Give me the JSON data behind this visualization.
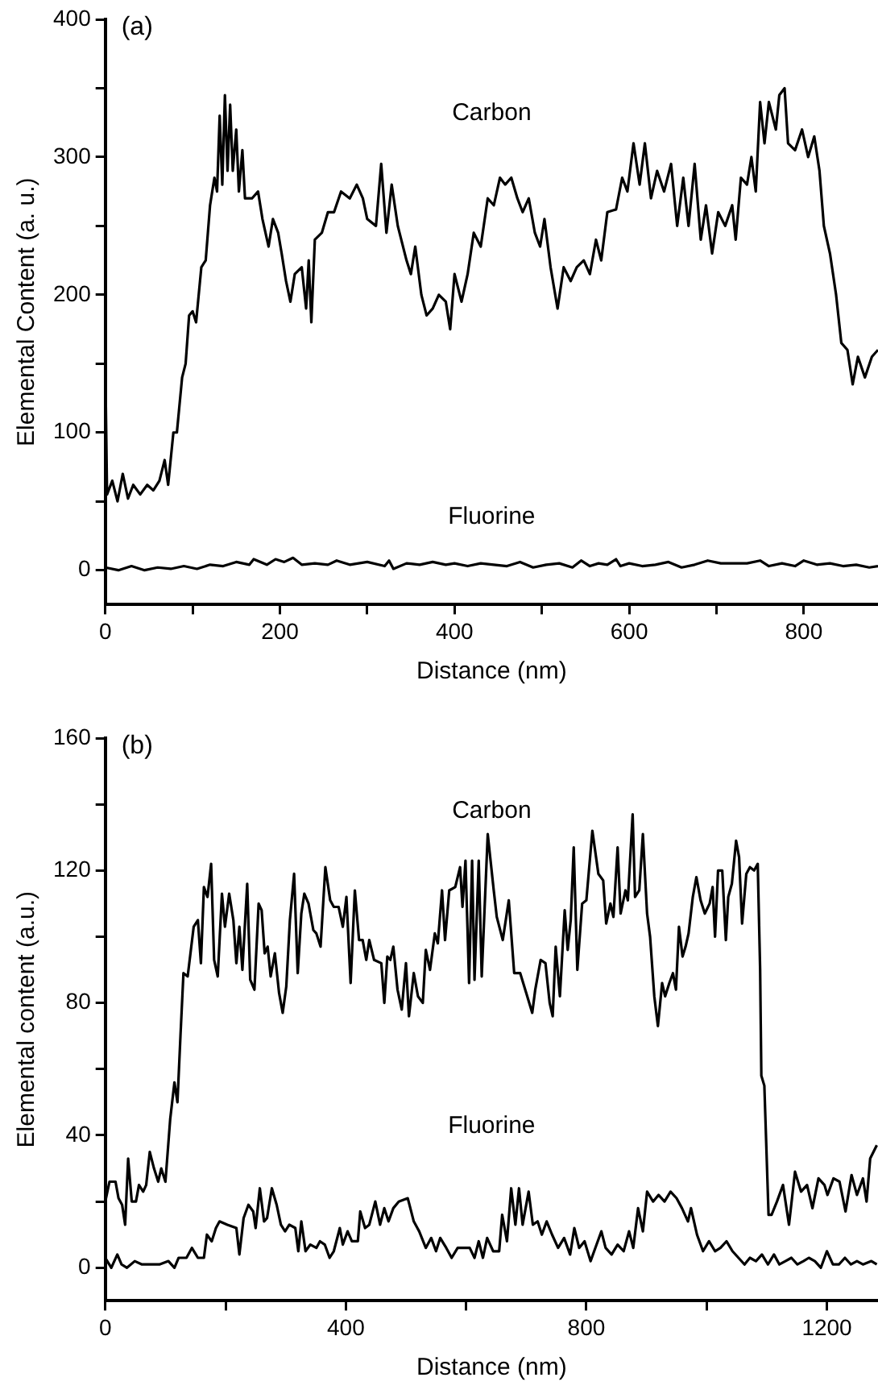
{
  "chart_data": [
    {
      "type": "line",
      "title": "(a)",
      "xlabel": "Distance (nm)",
      "ylabel": "Elemental Content (a. u.)",
      "xlim": [
        0,
        885
      ],
      "ylim": [
        -25,
        400
      ],
      "xticks": [
        0,
        {
          "value": 100,
          "label": null
        },
        200,
        {
          "value": 300,
          "label": null
        },
        400,
        {
          "value": 500,
          "label": null
        },
        600,
        {
          "value": 700,
          "label": null
        },
        800
      ],
      "yticks": [
        0,
        {
          "value": 50,
          "label": null
        },
        100,
        {
          "value": 150,
          "label": null
        },
        200,
        {
          "value": 250,
          "label": null
        },
        300,
        {
          "value": 350,
          "label": null
        },
        400
      ],
      "series": [
        {
          "name": "Carbon",
          "color": "#000000",
          "x": [
            0,
            2,
            8,
            14,
            20,
            26,
            32,
            40,
            48,
            55,
            62,
            68,
            72,
            78,
            82,
            88,
            92,
            96,
            100,
            104,
            110,
            115,
            120,
            125,
            128,
            131,
            134,
            137,
            140,
            143,
            146,
            150,
            153,
            157,
            160,
            168,
            175,
            180,
            187,
            192,
            198,
            202,
            207,
            212,
            217,
            225,
            230,
            233,
            236,
            240,
            248,
            255,
            262,
            270,
            280,
            288,
            295,
            300,
            310,
            316,
            322,
            328,
            335,
            345,
            350,
            355,
            362,
            368,
            375,
            382,
            390,
            395,
            400,
            408,
            415,
            422,
            430,
            438,
            445,
            452,
            458,
            465,
            472,
            478,
            485,
            492,
            498,
            503,
            510,
            518,
            525,
            533,
            540,
            548,
            555,
            562,
            568,
            575,
            585,
            592,
            598,
            605,
            612,
            618,
            625,
            632,
            640,
            648,
            655,
            662,
            668,
            675,
            682,
            688,
            695,
            702,
            710,
            718,
            722,
            728,
            735,
            740,
            745,
            750,
            755,
            760,
            768,
            772,
            778,
            782,
            790,
            798,
            805,
            812,
            818,
            823,
            830,
            837,
            843,
            850,
            856,
            862,
            870,
            878,
            885
          ],
          "values": [
            150,
            55,
            65,
            50,
            70,
            52,
            62,
            55,
            62,
            58,
            65,
            80,
            62,
            100,
            100,
            140,
            150,
            185,
            188,
            180,
            220,
            225,
            265,
            285,
            275,
            330,
            280,
            345,
            290,
            338,
            290,
            320,
            275,
            305,
            270,
            270,
            275,
            255,
            235,
            255,
            245,
            230,
            210,
            195,
            215,
            220,
            190,
            225,
            180,
            240,
            245,
            260,
            260,
            275,
            270,
            280,
            270,
            255,
            250,
            295,
            245,
            280,
            250,
            225,
            215,
            235,
            200,
            185,
            190,
            200,
            195,
            175,
            215,
            195,
            215,
            245,
            235,
            270,
            265,
            285,
            280,
            285,
            270,
            260,
            270,
            245,
            235,
            255,
            220,
            190,
            220,
            210,
            220,
            225,
            215,
            240,
            225,
            260,
            262,
            285,
            275,
            310,
            280,
            310,
            270,
            290,
            275,
            295,
            250,
            285,
            250,
            295,
            240,
            265,
            230,
            260,
            250,
            265,
            240,
            285,
            280,
            300,
            275,
            340,
            310,
            340,
            320,
            345,
            350,
            310,
            305,
            320,
            300,
            315,
            290,
            250,
            230,
            200,
            165,
            160,
            135,
            155,
            140,
            155,
            160
          ]
        },
        {
          "name": "Fluorine",
          "color": "#000000",
          "x": [
            0,
            15,
            30,
            45,
            60,
            75,
            90,
            105,
            120,
            135,
            150,
            165,
            170,
            185,
            195,
            205,
            215,
            225,
            240,
            255,
            265,
            280,
            300,
            320,
            325,
            330,
            345,
            360,
            375,
            390,
            400,
            415,
            430,
            445,
            460,
            475,
            490,
            505,
            520,
            535,
            545,
            555,
            565,
            575,
            585,
            590,
            600,
            615,
            630,
            645,
            660,
            675,
            690,
            705,
            720,
            735,
            750,
            760,
            775,
            790,
            800,
            815,
            830,
            845,
            860,
            875,
            885
          ],
          "values": [
            2,
            0,
            3,
            0,
            2,
            1,
            3,
            1,
            4,
            3,
            6,
            4,
            8,
            4,
            8,
            6,
            9,
            4,
            5,
            4,
            7,
            4,
            6,
            3,
            7,
            1,
            5,
            4,
            6,
            4,
            5,
            3,
            5,
            4,
            3,
            6,
            2,
            4,
            5,
            2,
            7,
            3,
            5,
            4,
            8,
            3,
            5,
            3,
            4,
            6,
            2,
            4,
            7,
            5,
            5,
            5,
            7,
            3,
            5,
            3,
            7,
            4,
            5,
            3,
            4,
            2,
            3
          ]
        }
      ]
    },
    {
      "type": "line",
      "title": "(b)",
      "xlabel": "Distance (nm)",
      "ylabel": "Elemental content (a.u.)",
      "xlim": [
        0,
        1285
      ],
      "ylim": [
        -10,
        160
      ],
      "xticks": [
        0,
        {
          "value": 200,
          "label": null
        },
        400,
        {
          "value": 600,
          "label": null
        },
        800,
        {
          "value": 1000,
          "label": null
        },
        1200
      ],
      "yticks": [
        0,
        {
          "value": 20,
          "label": null
        },
        40,
        {
          "value": 60,
          "label": null
        },
        80,
        {
          "value": 100,
          "label": null
        },
        120,
        {
          "value": 140,
          "label": null
        },
        160
      ],
      "series": [
        {
          "name": "Carbon",
          "color": "#000000",
          "x": [
            0,
            7,
            17,
            22,
            28,
            33,
            38,
            44,
            51,
            56,
            63,
            68,
            74,
            81,
            88,
            93,
            100,
            108,
            115,
            120,
            125,
            130,
            137,
            147,
            154,
            159,
            164,
            170,
            176,
            181,
            187,
            194,
            199,
            206,
            213,
            218,
            223,
            228,
            236,
            241,
            248,
            255,
            260,
            265,
            270,
            275,
            282,
            289,
            295,
            301,
            307,
            314,
            320,
            326,
            331,
            338,
            346,
            351,
            358,
            366,
            374,
            380,
            388,
            395,
            401,
            408,
            415,
            422,
            428,
            434,
            439,
            447,
            459,
            464,
            469,
            474,
            479,
            486,
            493,
            500,
            505,
            513,
            520,
            528,
            533,
            540,
            548,
            553,
            560,
            565,
            572,
            582,
            590,
            594,
            599,
            605,
            610,
            614,
            621,
            626,
            636,
            646,
            651,
            661,
            671,
            680,
            690,
            700,
            710,
            715,
            724,
            732,
            739,
            744,
            749,
            756,
            764,
            769,
            774,
            779,
            785,
            793,
            800,
            810,
            820,
            828,
            833,
            840,
            845,
            852,
            857,
            865,
            869,
            877,
            881,
            888,
            894,
            901,
            906,
            913,
            919,
            926,
            931,
            938,
            944,
            949,
            954,
            960,
            965,
            970,
            977,
            983,
            990,
            997,
            1005,
            1010,
            1014,
            1019,
            1026,
            1032,
            1036,
            1042,
            1049,
            1054,
            1059,
            1066,
            1072,
            1079,
            1085,
            1089,
            1091,
            1096,
            1103,
            1108,
            1117,
            1127,
            1137,
            1147,
            1157,
            1167,
            1176,
            1186,
            1196,
            1201,
            1211,
            1221,
            1231,
            1241,
            1250,
            1260,
            1266,
            1272,
            1283
          ],
          "values": [
            20,
            26,
            26,
            21,
            19,
            13,
            33,
            20,
            20,
            25,
            23,
            25,
            35,
            30,
            26,
            30,
            26,
            45,
            56,
            50,
            70,
            89,
            88,
            103,
            105,
            92,
            115,
            112,
            122,
            93,
            88,
            113,
            103,
            113,
            105,
            92,
            103,
            90,
            116,
            87,
            84,
            110,
            108,
            95,
            97,
            88,
            95,
            83,
            77,
            85,
            105,
            119,
            89,
            107,
            113,
            110,
            102,
            101,
            97,
            121,
            111,
            109,
            109,
            103,
            112,
            86,
            114,
            99,
            99,
            93,
            99,
            93,
            92,
            80,
            94,
            93,
            97,
            84,
            78,
            92,
            76,
            89,
            82,
            80,
            96,
            90,
            101,
            98,
            114,
            99,
            114,
            115,
            121,
            109,
            123,
            86,
            123,
            87,
            123,
            88,
            131,
            114,
            106,
            99,
            111,
            89,
            89,
            83,
            77,
            84,
            93,
            92,
            80,
            76,
            97,
            82,
            108,
            96,
            105,
            127,
            90,
            110,
            111,
            132,
            119,
            117,
            104,
            110,
            106,
            127,
            107,
            114,
            111,
            137,
            112,
            114,
            131,
            107,
            100,
            82,
            73,
            86,
            82,
            86,
            89,
            84,
            103,
            94,
            97,
            101,
            112,
            118,
            111,
            107,
            110,
            115,
            100,
            120,
            120,
            99,
            112,
            116,
            129,
            124,
            104,
            119,
            121,
            120,
            122,
            90,
            58,
            55,
            16,
            16,
            20,
            25,
            13,
            29,
            23,
            25,
            18,
            27,
            25,
            22,
            27,
            26,
            17,
            28,
            22,
            27,
            20,
            33,
            37
          ]
        },
        {
          "name": "Fluorine",
          "color": "#000000",
          "x": [
            0,
            10,
            20,
            27,
            36,
            49,
            61,
            76,
            90,
            105,
            115,
            122,
            135,
            144,
            154,
            164,
            169,
            177,
            184,
            190,
            203,
            218,
            223,
            230,
            238,
            246,
            250,
            257,
            264,
            269,
            277,
            285,
            292,
            299,
            306,
            316,
            321,
            326,
            333,
            341,
            351,
            357,
            365,
            373,
            380,
            390,
            395,
            403,
            410,
            420,
            424,
            432,
            439,
            449,
            457,
            464,
            471,
            479,
            488,
            503,
            513,
            522,
            533,
            542,
            550,
            557,
            567,
            576,
            586,
            596,
            606,
            614,
            621,
            628,
            635,
            645,
            655,
            660,
            668,
            675,
            682,
            688,
            694,
            704,
            711,
            719,
            726,
            734,
            743,
            753,
            763,
            773,
            780,
            788,
            797,
            807,
            817,
            825,
            832,
            842,
            852,
            862,
            871,
            878,
            886,
            894,
            901,
            911,
            920,
            930,
            940,
            950,
            959,
            969,
            974,
            984,
            994,
            1004,
            1014,
            1023,
            1033,
            1043,
            1053,
            1063,
            1072,
            1082,
            1092,
            1102,
            1112,
            1121,
            1131,
            1141,
            1151,
            1161,
            1170,
            1180,
            1190,
            1200,
            1210,
            1220,
            1230,
            1240,
            1250,
            1260,
            1274,
            1283
          ],
          "values": [
            3,
            0,
            4,
            1,
            0,
            2,
            1,
            1,
            1,
            2,
            0,
            3,
            3,
            6,
            3,
            3,
            10,
            8,
            12,
            14,
            13,
            12,
            4,
            15,
            19,
            17,
            12,
            24,
            14,
            15,
            24,
            19,
            13,
            11,
            13,
            12,
            5,
            14,
            5,
            7,
            6,
            8,
            7,
            3,
            5,
            12,
            7,
            11,
            8,
            8,
            17,
            12,
            13,
            20,
            13,
            18,
            14,
            18,
            20,
            21,
            14,
            11,
            6,
            9,
            5,
            9,
            6,
            3,
            6,
            6,
            6,
            3,
            8,
            3,
            9,
            5,
            5,
            16,
            8,
            24,
            13,
            24,
            13,
            23,
            13,
            14,
            10,
            14,
            10,
            6,
            9,
            4,
            12,
            6,
            8,
            2,
            7,
            11,
            6,
            4,
            7,
            5,
            11,
            6,
            18,
            11,
            23,
            20,
            22,
            20,
            23,
            21,
            18,
            14,
            18,
            10,
            5,
            8,
            5,
            6,
            8,
            5,
            3,
            1,
            3,
            2,
            4,
            1,
            4,
            1,
            2,
            3,
            1,
            2,
            3,
            2,
            0,
            5,
            1,
            1,
            3,
            1,
            2,
            1,
            2,
            1
          ]
        }
      ]
    }
  ]
}
